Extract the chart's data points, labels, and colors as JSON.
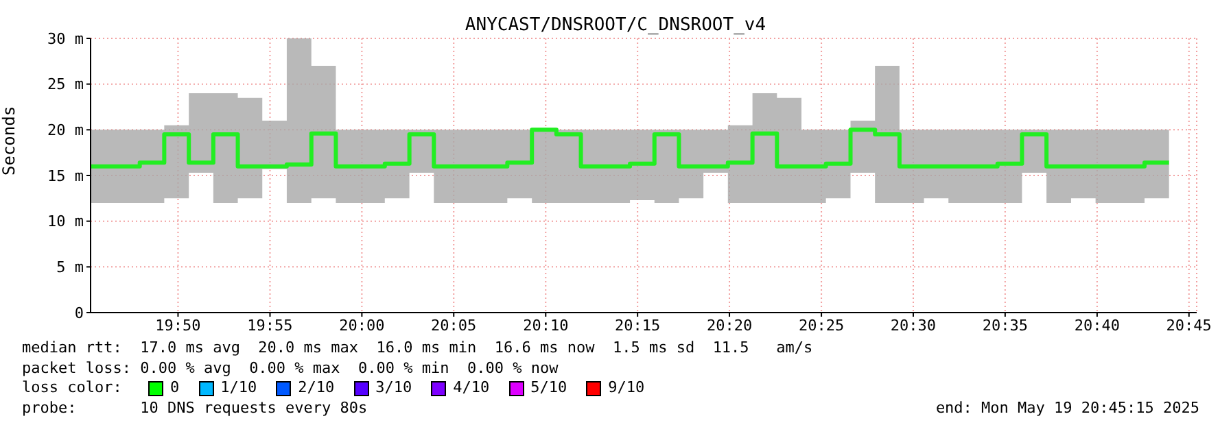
{
  "chart_data": {
    "type": "line",
    "title": "ANYCAST/DNSROOT/C_DNSROOT_v4",
    "ylabel": "Seconds",
    "x": [
      19.7542,
      19.7764,
      19.7764,
      19.7986,
      19.7986,
      19.8208,
      19.8208,
      19.8431,
      19.8431,
      19.8653,
      19.8653,
      19.8875,
      19.8875,
      19.9097,
      19.9097,
      19.9319,
      19.9319,
      19.9542,
      19.9542,
      19.9764,
      19.9764,
      19.9986,
      19.9986,
      20.0208,
      20.0208,
      20.0431,
      20.0431,
      20.0653,
      20.0653,
      20.0875,
      20.0875,
      20.1097,
      20.1097,
      20.1319,
      20.1319,
      20.1542,
      20.1542,
      20.1764,
      20.1764,
      20.1986,
      20.1986,
      20.2208,
      20.2208,
      20.2431,
      20.2431,
      20.2653,
      20.2653,
      20.2875,
      20.2875,
      20.3097,
      20.3097,
      20.3319,
      20.3319,
      20.3542,
      20.3542,
      20.3764,
      20.3764,
      20.3986,
      20.3986,
      20.4208,
      20.4208,
      20.4431,
      20.4431,
      20.4653,
      20.4653,
      20.4875,
      20.4875,
      20.5097,
      20.5097,
      20.5319,
      20.5319,
      20.5542,
      20.5542,
      20.5764,
      20.5764,
      20.5986,
      20.5986,
      20.6208,
      20.6208,
      20.6431,
      20.6431,
      20.6653,
      20.6653,
      20.6875,
      20.6875,
      20.7097,
      20.7097,
      20.7319
    ],
    "series": [
      {
        "color": "#22ee22",
        "values": [
          16,
          16,
          16,
          16,
          16.4,
          16.4,
          19.5,
          19.5,
          16.4,
          16.4,
          19.5,
          19.5,
          16,
          16,
          16,
          16,
          16.2,
          16.2,
          19.6,
          19.6,
          16,
          16,
          16,
          16,
          16.3,
          16.3,
          19.5,
          19.5,
          16,
          16,
          16,
          16,
          16,
          16,
          16.4,
          16.4,
          20,
          20,
          19.5,
          19.5,
          16,
          16,
          16,
          16,
          16.3,
          16.3,
          19.5,
          19.5,
          16,
          16,
          16,
          16,
          16.4,
          16.4,
          19.6,
          19.6,
          16,
          16,
          16,
          16,
          16.3,
          16.3,
          20,
          20,
          19.5,
          19.5,
          16,
          16,
          16,
          16,
          16,
          16,
          16,
          16,
          16.3,
          16.3,
          19.5,
          19.5,
          16,
          16,
          16,
          16,
          16,
          16,
          16,
          16,
          16.4,
          16.4
        ],
        "lower": [
          12,
          12,
          12,
          12,
          12,
          12,
          12.5,
          12.5,
          15.3,
          15.3,
          12,
          12,
          12.5,
          12.5,
          15.7,
          15.7,
          12,
          12,
          12.5,
          12.5,
          12,
          12,
          12,
          12,
          12.5,
          12.5,
          15.3,
          15.3,
          12,
          12,
          12,
          12,
          12,
          12,
          12.5,
          12.5,
          12,
          12,
          12,
          12,
          12,
          12,
          12,
          12,
          12.3,
          12.3,
          12,
          12,
          12.5,
          12.5,
          15.3,
          15.3,
          12,
          12,
          12,
          12,
          12,
          12,
          12,
          12,
          12.5,
          12.5,
          15.3,
          15.3,
          12,
          12,
          12,
          12,
          12.5,
          12.5,
          12,
          12,
          12,
          12,
          12,
          12,
          15.3,
          15.3,
          12,
          12,
          12.5,
          12.5,
          12,
          12,
          12,
          12,
          12.5,
          12.5
        ],
        "upper": [
          20,
          20,
          20,
          20,
          20,
          20,
          20.5,
          20.5,
          24,
          24,
          24,
          24,
          23.5,
          23.5,
          21,
          21,
          30,
          30,
          27,
          27,
          20,
          20,
          20,
          20,
          20,
          20,
          20,
          20,
          20,
          20,
          20,
          20,
          20,
          20,
          20,
          20,
          20,
          20,
          20,
          20,
          20,
          20,
          20,
          20,
          20,
          20,
          20,
          20,
          20,
          20,
          20,
          20,
          20.5,
          20.5,
          24,
          24,
          23.5,
          23.5,
          20,
          20,
          20,
          20,
          21,
          21,
          27,
          27,
          20,
          20,
          20,
          20,
          20,
          20,
          20,
          20,
          20,
          20,
          20,
          20,
          20,
          20,
          20,
          20,
          20,
          20,
          20,
          20,
          20,
          20
        ]
      }
    ],
    "xlim": [
      19.754,
      20.757
    ],
    "xticks": [
      {
        "value": 19.8333,
        "label": "19:50"
      },
      {
        "value": 19.9167,
        "label": "19:55"
      },
      {
        "value": 20,
        "label": "20:00"
      },
      {
        "value": 20.0833,
        "label": "20:05"
      },
      {
        "value": 20.1667,
        "label": "20:10"
      },
      {
        "value": 20.25,
        "label": "20:15"
      },
      {
        "value": 20.3333,
        "label": "20:20"
      },
      {
        "value": 20.4167,
        "label": "20:25"
      },
      {
        "value": 20.5,
        "label": "20:30"
      },
      {
        "value": 20.5833,
        "label": "20:35"
      },
      {
        "value": 20.6667,
        "label": "20:40"
      },
      {
        "value": 20.75,
        "label": "20:45"
      }
    ],
    "ylim": [
      0,
      30
    ],
    "yticks": [
      0,
      {
        "value": 5,
        "label": "5 m"
      },
      {
        "value": 10,
        "label": "10 m"
      },
      {
        "value": 15,
        "label": "15 m"
      },
      {
        "value": 20,
        "label": "20 m"
      },
      {
        "value": 25,
        "label": "25 m"
      },
      {
        "value": 30,
        "label": "30 m"
      }
    ],
    "grid": true,
    "annotations": [
      "median rtt:  17.0 ms avg  20.0 ms max  16.0 ms min  16.6 ms now  1.5 ms sd  11.5   am/s",
      "packet loss: 0.00 % avg  0.00 % max  0.00 % min  0.00 % now",
      "loss color:",
      "0",
      "1/10",
      "2/10",
      "3/10",
      "4/10",
      "5/10",
      "9/10",
      "probe:       10 DNS requests every 80s",
      "end: Mon May 19 20:45:15 2025"
    ]
  }
}
